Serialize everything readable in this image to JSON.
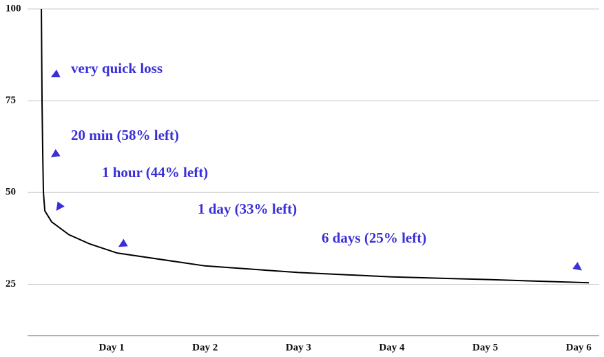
{
  "chart_data": {
    "type": "line",
    "x": [
      0.248,
      0.255,
      0.263,
      0.27,
      0.285,
      0.358,
      0.543,
      0.764,
      1.06,
      2,
      3,
      4,
      5,
      6.11
    ],
    "series": [
      {
        "color": "#000000",
        "values": [
          100,
          75,
          60,
          50,
          45,
          42,
          38.5,
          36,
          33.5,
          30,
          28.2,
          27,
          26.3,
          25.4
        ]
      }
    ],
    "xlim": [
      0.1,
      6.22
    ],
    "ylim": [
      11,
      100
    ],
    "xticks": [
      {
        "value": 1,
        "label": "Day 1"
      },
      {
        "value": 2,
        "label": "Day 2"
      },
      {
        "value": 3,
        "label": "Day 3"
      },
      {
        "value": 4,
        "label": "Day 4"
      },
      {
        "value": 5,
        "label": "Day 5"
      },
      {
        "value": 6,
        "label": "Day 6"
      }
    ],
    "yticks": [
      25,
      50,
      75,
      100
    ],
    "grid": true,
    "annotations": [
      "very quick loss",
      "20 min (58% left)",
      "1 hour (44% left)",
      "1 day (33% left)",
      "6 days (25% left)"
    ],
    "annotation_color": "#3a2fd8"
  }
}
